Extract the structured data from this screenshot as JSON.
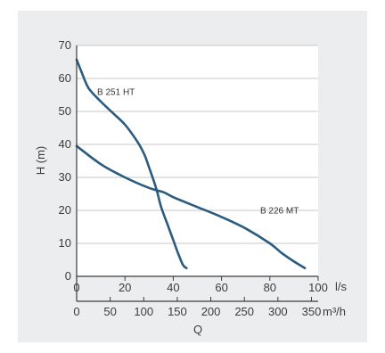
{
  "chart_data": {
    "type": "line",
    "ylabel": "H (m)",
    "xlabel": "Q",
    "ylim": [
      0,
      70
    ],
    "y_ticks": [
      "0",
      "10",
      "20",
      "30",
      "40",
      "50",
      "60",
      "70"
    ],
    "x_primary": {
      "unit": "l/s",
      "range": [
        0,
        100
      ],
      "ticks": [
        "0",
        "20",
        "40",
        "60",
        "80",
        "100"
      ]
    },
    "x_secondary": {
      "unit": "m³/h",
      "range": [
        0,
        360
      ],
      "ticks": [
        "0",
        "50",
        "100",
        "150",
        "200",
        "250",
        "300",
        "350"
      ]
    },
    "grid": true,
    "series": [
      {
        "name": "B 251 HT",
        "color": "#2b5b7e",
        "x": [
          0,
          2,
          5,
          10,
          15,
          20,
          25,
          28,
          30,
          33,
          35,
          38,
          40,
          42,
          44,
          45.5
        ],
        "y": [
          65.7,
          62,
          57,
          53,
          49.5,
          46,
          41,
          37,
          33,
          26.5,
          21,
          15,
          11,
          7,
          3.5,
          2.5
        ]
      },
      {
        "name": "B 226 MT",
        "color": "#2b5b7e",
        "x": [
          0,
          10,
          20,
          30,
          36,
          40,
          50,
          60,
          70,
          80,
          85,
          90,
          94.5
        ],
        "y": [
          39.5,
          34,
          30,
          26.8,
          25.5,
          24,
          21,
          18,
          14.5,
          10,
          7,
          4.5,
          2.5
        ]
      }
    ]
  }
}
